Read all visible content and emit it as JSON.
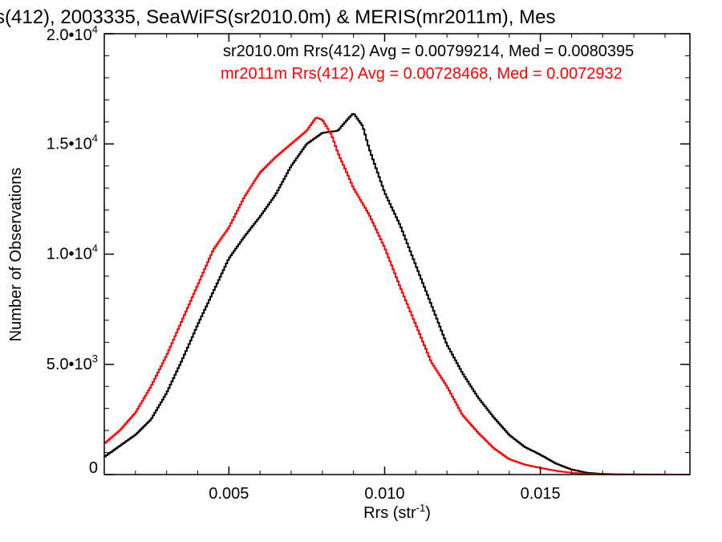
{
  "chart_data": {
    "type": "line",
    "title": "s(412), 2003335, SeaWiFS(sr2010.0m) & MERIS(mr2011m), Mes",
    "xlabel": "Rrs (str",
    "xlabel_sup": "-1",
    "xlabel_tail": ")",
    "ylabel": "Number of Observations",
    "xlim": [
      0.001,
      0.0198
    ],
    "ylim": [
      0,
      20000
    ],
    "x_ticks": [
      {
        "value": 0.005,
        "label": "0.005"
      },
      {
        "value": 0.01,
        "label": "0.010"
      },
      {
        "value": 0.015,
        "label": "0.015"
      }
    ],
    "y_ticks": [
      {
        "value": 0,
        "base": "0",
        "exp": ""
      },
      {
        "value": 5000,
        "base": "5.0•3",
        "exp": ""
      },
      {
        "value": 10000,
        "base": "1.0•10",
        "exp": "4"
      },
      {
        "value": 15000,
        "base": "1.5•10",
        "exp": "4"
      },
      {
        "value": 20000,
        "base": "2.0•10",
        "exp": "4"
      }
    ],
    "series": [
      {
        "name": "sr2010.0m",
        "legend": "sr2010.0m Rrs(412) Avg = 0.00799214, Med = 0.0080395",
        "color": "#000000",
        "x": [
          0.001,
          0.0015,
          0.002,
          0.0025,
          0.003,
          0.0035,
          0.004,
          0.0045,
          0.005,
          0.0055,
          0.006,
          0.0065,
          0.007,
          0.0075,
          0.008,
          0.0085,
          0.0088,
          0.009,
          0.0093,
          0.0095,
          0.01,
          0.0105,
          0.011,
          0.0115,
          0.012,
          0.0125,
          0.013,
          0.0135,
          0.014,
          0.0145,
          0.015,
          0.0155,
          0.016,
          0.0165,
          0.017,
          0.0175,
          0.018,
          0.019,
          0.0198
        ],
        "y": [
          800,
          1300,
          1800,
          2500,
          3700,
          5200,
          6800,
          8300,
          9800,
          10800,
          11700,
          12700,
          14000,
          15000,
          15500,
          15600,
          16100,
          16400,
          15800,
          14800,
          12800,
          11300,
          9500,
          7700,
          5900,
          4600,
          3500,
          2600,
          1800,
          1250,
          900,
          500,
          230,
          80,
          30,
          10,
          5,
          2,
          0
        ]
      },
      {
        "name": "mr2011m",
        "legend": "mr2011m Rrs(412) Avg = 0.00728468, Med = 0.0072932",
        "color": "#ff0000",
        "x": [
          0.001,
          0.0015,
          0.002,
          0.0025,
          0.003,
          0.0035,
          0.004,
          0.0045,
          0.005,
          0.0055,
          0.006,
          0.0065,
          0.007,
          0.0075,
          0.0078,
          0.008,
          0.0083,
          0.0085,
          0.009,
          0.0095,
          0.01,
          0.0105,
          0.011,
          0.0115,
          0.012,
          0.0125,
          0.013,
          0.0135,
          0.014,
          0.0145,
          0.015,
          0.0155,
          0.016,
          0.0165,
          0.017,
          0.018,
          0.0198
        ],
        "y": [
          1400,
          2000,
          2800,
          4000,
          5400,
          7000,
          8600,
          10200,
          11200,
          12600,
          13700,
          14400,
          15000,
          15600,
          16200,
          16100,
          15400,
          14600,
          13000,
          11800,
          10300,
          8500,
          6800,
          5100,
          4000,
          2700,
          1900,
          1200,
          700,
          450,
          300,
          170,
          80,
          30,
          10,
          3,
          0
        ]
      }
    ]
  }
}
